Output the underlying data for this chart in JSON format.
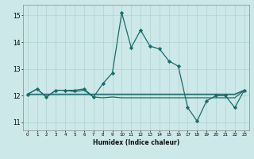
{
  "title": "",
  "xlabel": "Humidex (Indice chaleur)",
  "background_color": "#cce8e8",
  "grid_color": "#aacccc",
  "line_color": "#1a6b6b",
  "xlim": [
    -0.5,
    23.5
  ],
  "ylim": [
    10.7,
    15.4
  ],
  "yticks": [
    11,
    12,
    13,
    14,
    15
  ],
  "xticks": [
    0,
    1,
    2,
    3,
    4,
    5,
    6,
    7,
    8,
    9,
    10,
    11,
    12,
    13,
    14,
    15,
    16,
    17,
    18,
    19,
    20,
    21,
    22,
    23
  ],
  "line1_x": [
    0,
    1,
    2,
    3,
    4,
    5,
    6,
    7,
    8,
    9,
    10,
    11,
    12,
    13,
    14,
    15,
    16,
    17,
    18,
    19,
    20,
    21,
    22,
    23
  ],
  "line1_y": [
    12.05,
    12.25,
    11.95,
    12.2,
    12.2,
    12.2,
    12.25,
    11.95,
    12.45,
    12.85,
    15.1,
    13.8,
    14.45,
    13.85,
    13.75,
    13.3,
    13.1,
    11.55,
    11.05,
    11.8,
    12.0,
    12.0,
    11.55,
    12.2
  ],
  "line2_x": [
    0,
    1,
    2,
    3,
    4,
    5,
    6,
    7,
    8,
    9,
    10,
    11,
    12,
    13,
    14,
    15,
    16,
    17,
    18,
    19,
    20,
    21,
    22,
    23
  ],
  "line2_y": [
    12.05,
    12.25,
    11.95,
    12.2,
    12.2,
    12.15,
    12.2,
    11.95,
    11.92,
    11.95,
    11.92,
    11.92,
    11.92,
    11.92,
    11.92,
    11.92,
    11.92,
    11.92,
    11.92,
    11.92,
    11.92,
    11.92,
    11.92,
    12.2
  ],
  "line3_x": [
    0,
    1,
    2,
    3,
    4,
    5,
    6,
    7,
    8,
    9,
    10,
    11,
    12,
    13,
    14,
    15,
    16,
    17,
    18,
    19,
    20,
    21,
    22,
    23
  ],
  "line3_y": [
    12.05,
    12.05,
    12.05,
    12.05,
    12.05,
    12.05,
    12.05,
    12.05,
    12.05,
    12.05,
    12.05,
    12.05,
    12.05,
    12.05,
    12.05,
    12.05,
    12.05,
    12.05,
    12.05,
    12.05,
    12.05,
    12.05,
    12.05,
    12.2
  ]
}
